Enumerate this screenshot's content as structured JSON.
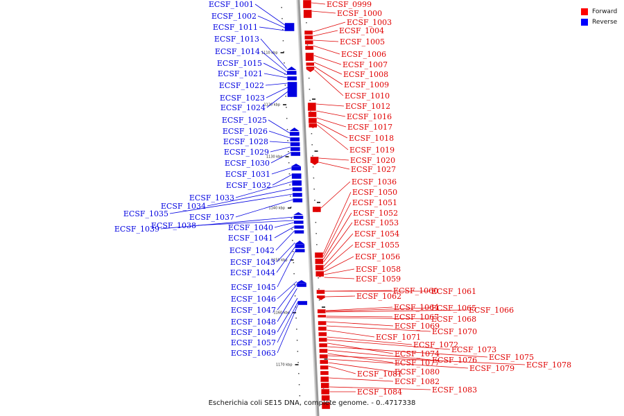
{
  "caption": "Escherichia coli SE15 DNA, complete genome. - 0..4717338",
  "legend": [
    {
      "label": "Forward",
      "color": "#ff0000"
    },
    {
      "label": "Reverse",
      "color": "#0000ff"
    }
  ],
  "colors": {
    "forward": "#e00000",
    "reverse": "#0000e0",
    "axis": "#999999"
  },
  "scale_ticks": [
    {
      "label": "1110 kbp"
    },
    {
      "label": "1120 kbp"
    },
    {
      "label": "1130 kbp"
    },
    {
      "label": "1140 kbp"
    },
    {
      "label": "1150 kbp"
    },
    {
      "label": "1160 kbp"
    },
    {
      "label": "1170 kbp"
    }
  ],
  "forward_genes": [
    {
      "name": "ECSF_0999"
    },
    {
      "name": "ECSF_1000"
    },
    {
      "name": "ECSF_1003"
    },
    {
      "name": "ECSF_1004"
    },
    {
      "name": "ECSF_1005"
    },
    {
      "name": "ECSF_1006"
    },
    {
      "name": "ECSF_1007"
    },
    {
      "name": "ECSF_1008"
    },
    {
      "name": "ECSF_1009"
    },
    {
      "name": "ECSF_1010"
    },
    {
      "name": "ECSF_1012"
    },
    {
      "name": "ECSF_1016"
    },
    {
      "name": "ECSF_1017"
    },
    {
      "name": "ECSF_1018"
    },
    {
      "name": "ECSF_1019"
    },
    {
      "name": "ECSF_1020"
    },
    {
      "name": "ECSF_1027"
    },
    {
      "name": "ECSF_1036"
    },
    {
      "name": "ECSF_1050"
    },
    {
      "name": "ECSF_1051"
    },
    {
      "name": "ECSF_1052"
    },
    {
      "name": "ECSF_1053"
    },
    {
      "name": "ECSF_1054"
    },
    {
      "name": "ECSF_1055"
    },
    {
      "name": "ECSF_1056"
    },
    {
      "name": "ECSF_1058"
    },
    {
      "name": "ECSF_1059"
    },
    {
      "name": "ECSF_1060"
    },
    {
      "name": "ECSF_1061"
    },
    {
      "name": "ECSF_1062"
    },
    {
      "name": "ECSF_1064"
    },
    {
      "name": "ECSF_1065"
    },
    {
      "name": "ECSF_1066"
    },
    {
      "name": "ECSF_1067"
    },
    {
      "name": "ECSF_1068"
    },
    {
      "name": "ECSF_1069"
    },
    {
      "name": "ECSF_1070"
    },
    {
      "name": "ECSF_1071"
    },
    {
      "name": "ECSF_1072"
    },
    {
      "name": "ECSF_1073"
    },
    {
      "name": "ECSF_1074"
    },
    {
      "name": "ECSF_1075"
    },
    {
      "name": "ECSF_1076"
    },
    {
      "name": "ECSF_1077"
    },
    {
      "name": "ECSF_1078"
    },
    {
      "name": "ECSF_1079"
    },
    {
      "name": "ECSF_1080"
    },
    {
      "name": "ECSF_1081"
    },
    {
      "name": "ECSF_1082"
    },
    {
      "name": "ECSF_1083"
    },
    {
      "name": "ECSF_1084"
    }
  ],
  "reverse_genes": [
    {
      "name": "ECSF_1001"
    },
    {
      "name": "ECSF_1002"
    },
    {
      "name": "ECSF_1011"
    },
    {
      "name": "ECSF_1013"
    },
    {
      "name": "ECSF_1014"
    },
    {
      "name": "ECSF_1015"
    },
    {
      "name": "ECSF_1021"
    },
    {
      "name": "ECSF_1022"
    },
    {
      "name": "ECSF_1023"
    },
    {
      "name": "ECSF_1024"
    },
    {
      "name": "ECSF_1025"
    },
    {
      "name": "ECSF_1026"
    },
    {
      "name": "ECSF_1028"
    },
    {
      "name": "ECSF_1029"
    },
    {
      "name": "ECSF_1030"
    },
    {
      "name": "ECSF_1031"
    },
    {
      "name": "ECSF_1032"
    },
    {
      "name": "ECSF_1033"
    },
    {
      "name": "ECSF_1034"
    },
    {
      "name": "ECSF_1035"
    },
    {
      "name": "ECSF_1037"
    },
    {
      "name": "ECSF_1039"
    },
    {
      "name": "ECSF_1038"
    },
    {
      "name": "ECSF_1040"
    },
    {
      "name": "ECSF_1041"
    },
    {
      "name": "ECSF_1042"
    },
    {
      "name": "ECSF_1043"
    },
    {
      "name": "ECSF_1044"
    },
    {
      "name": "ECSF_1045"
    },
    {
      "name": "ECSF_1046"
    },
    {
      "name": "ECSF_1047"
    },
    {
      "name": "ECSF_1048"
    },
    {
      "name": "ECSF_1049"
    },
    {
      "name": "ECSF_1057"
    },
    {
      "name": "ECSF_1063"
    }
  ]
}
